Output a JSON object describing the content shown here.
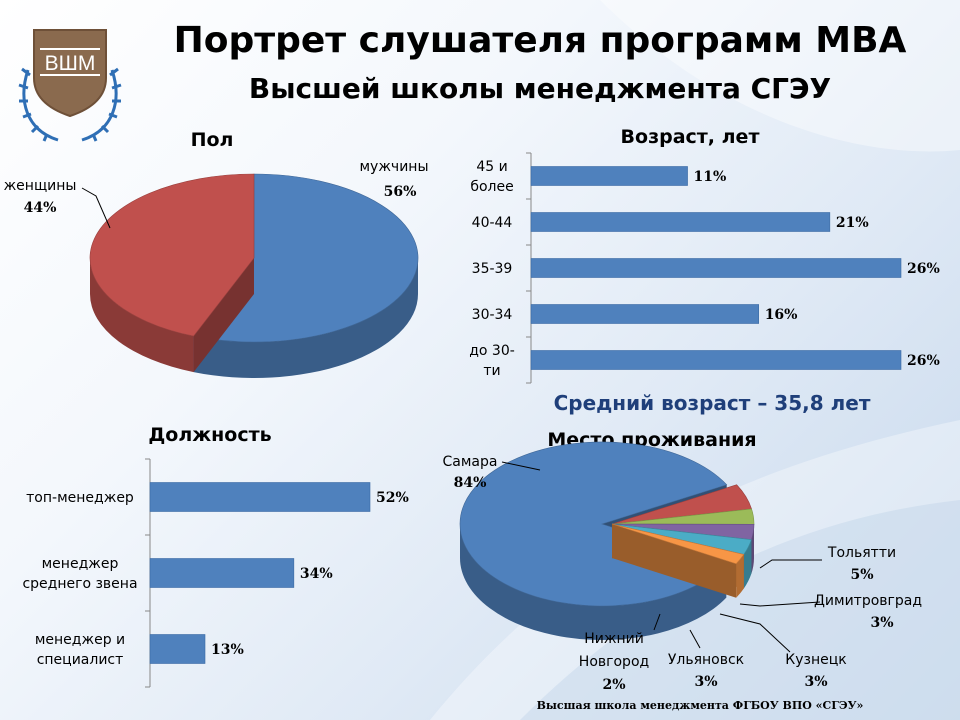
{
  "logo": {
    "text": "ВШМ"
  },
  "title": {
    "line1": "Портрет слушателя программ MBA",
    "line2": "Высшей школы менеджмента СГЭУ"
  },
  "footer": "Высшая школа менеджмента ФГБОУ ВПО «СГЭУ»",
  "average_age": "Средний возраст – 35,8 лет",
  "colors": {
    "blue": "#4f81bd",
    "red": "#c0504d",
    "green": "#9bbb59",
    "purple": "#8064a2",
    "cyan": "#4bacc6",
    "orange": "#f79646",
    "title": "#000000",
    "avg": "#1f3f7a"
  },
  "chart_data": [
    {
      "id": "gender",
      "type": "pie",
      "title": "Пол",
      "slices": [
        {
          "label": "мужчины",
          "value": 56,
          "value_label": "56%",
          "color": "#4f81bd"
        },
        {
          "label": "женщины",
          "value": 44,
          "value_label": "44%",
          "color": "#c0504d"
        }
      ]
    },
    {
      "id": "age",
      "type": "bar",
      "orientation": "horizontal",
      "title": "Возраст, лет",
      "categories": [
        "45 и более",
        "40-44",
        "35-39",
        "30-34",
        "до 30-ти"
      ],
      "category_lines": [
        [
          "45 и",
          "более"
        ],
        [
          "40-44"
        ],
        [
          "35-39"
        ],
        [
          "30-34"
        ],
        [
          "до 30-",
          "ти"
        ]
      ],
      "values": [
        11,
        21,
        26,
        16,
        26
      ],
      "value_labels": [
        "11%",
        "21%",
        "26%",
        "16%",
        "26%"
      ],
      "xlim": [
        0,
        26
      ]
    },
    {
      "id": "position",
      "type": "bar",
      "orientation": "horizontal",
      "title": "Должность",
      "categories": [
        "топ-менеджер",
        "менеджер среднего звена",
        "менеджер и специалист"
      ],
      "category_lines": [
        [
          "топ-менеджер"
        ],
        [
          "менеджер",
          "среднего звена"
        ],
        [
          "менеджер и",
          "специалист"
        ]
      ],
      "values": [
        52,
        34,
        13
      ],
      "value_labels": [
        "52%",
        "34%",
        "13%"
      ],
      "xlim": [
        0,
        52
      ]
    },
    {
      "id": "residence",
      "type": "pie",
      "title": "Место проживания",
      "slices": [
        {
          "label": "Самара",
          "value": 84,
          "value_label": "84%",
          "color": "#4f81bd"
        },
        {
          "label": "Тольятти",
          "value": 5,
          "value_label": "5%",
          "color": "#c0504d"
        },
        {
          "label": "Димитровград",
          "value": 3,
          "value_label": "3%",
          "color": "#9bbb59"
        },
        {
          "label": "Кузнецк",
          "value": 3,
          "value_label": "3%",
          "color": "#8064a2"
        },
        {
          "label": "Ульяновск",
          "value": 3,
          "value_label": "3%",
          "color": "#4bacc6"
        },
        {
          "label": "Нижний Новгород",
          "value": 2,
          "value_label": "2%",
          "color": "#f79646"
        }
      ]
    }
  ]
}
